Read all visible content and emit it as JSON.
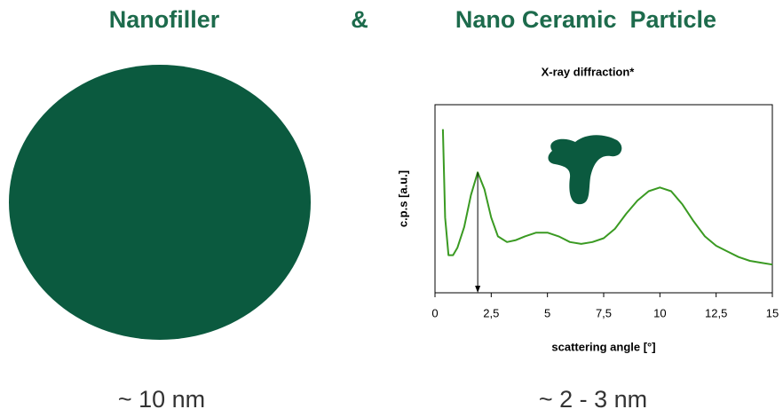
{
  "slide": {
    "left_title": "Nanofiller",
    "connector": "&",
    "right_title": "Nano Ceramic  Particle",
    "left_size": "~ 10 nm",
    "right_size": "~ 2 - 3 nm"
  },
  "chart_data": {
    "type": "line",
    "title": "X-ray diffraction*",
    "x_label": "scattering angle [°]",
    "y_label": "c.p.s [a.u.]",
    "x": [
      0.35,
      0.45,
      0.6,
      0.8,
      1.0,
      1.3,
      1.6,
      1.9,
      2.2,
      2.5,
      2.8,
      3.2,
      3.6,
      4.0,
      4.5,
      5.0,
      5.5,
      6.0,
      6.5,
      7.0,
      7.5,
      8.0,
      8.5,
      9.0,
      9.5,
      10.0,
      10.5,
      11.0,
      11.5,
      12.0,
      12.5,
      13.0,
      13.5,
      14.0,
      14.5,
      15.0
    ],
    "values": [
      87,
      40,
      20,
      20,
      24,
      35,
      52,
      64,
      55,
      40,
      30,
      27,
      28,
      30,
      32,
      32,
      30,
      27,
      26,
      27,
      29,
      34,
      42,
      49,
      54,
      56,
      54,
      47,
      38,
      30,
      25,
      22,
      19,
      17,
      16,
      15
    ],
    "color": "#3a9a22",
    "xlim": [
      0,
      15
    ],
    "ylim": [
      0,
      100
    ],
    "xticks": [
      0,
      {
        "value": 2.5,
        "label": "2,5"
      },
      5,
      {
        "value": 7.5,
        "label": "7,5"
      },
      10,
      {
        "value": 12.5,
        "label": "12,5"
      },
      15
    ]
  }
}
